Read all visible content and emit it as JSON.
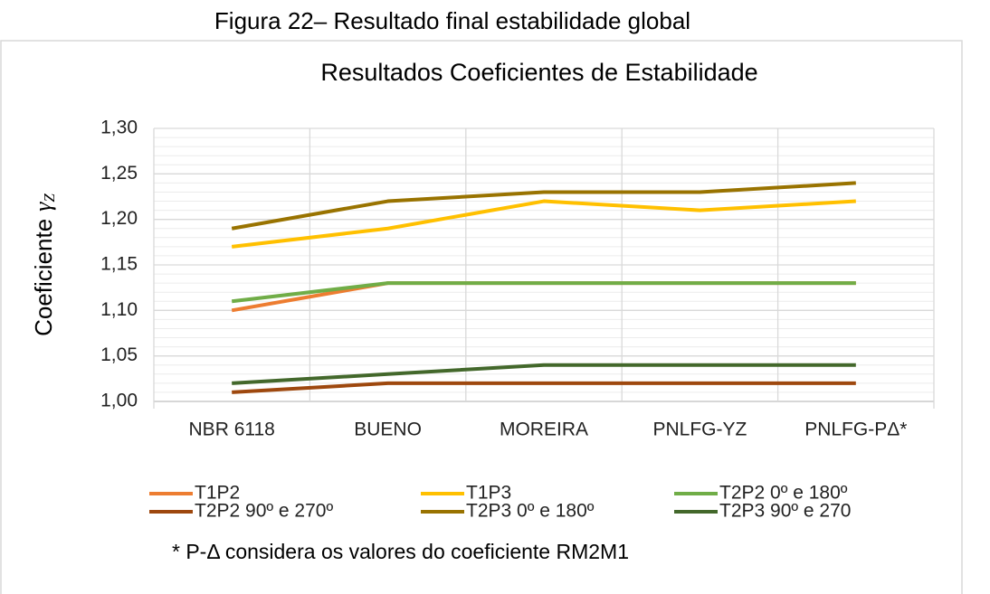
{
  "caption": "Figura 22– Resultado final estabilidade global",
  "chart_data": {
    "type": "line",
    "title": "Resultados Coeficientes de Estabilidade",
    "y_label": "Coeficiente",
    "y_label_symbol": "γ",
    "y_label_subscript": "Z",
    "categories": [
      "NBR 6118",
      "BUENO",
      "MOREIRA",
      "PNLFG-YZ",
      "PNLFG-PΔ*"
    ],
    "series": [
      {
        "name": "T1P2",
        "color": "#ED7D31",
        "values": [
          1.1,
          1.13,
          1.13,
          1.13,
          1.13
        ]
      },
      {
        "name": "T1P3",
        "color": "#FFC000",
        "values": [
          1.17,
          1.19,
          1.22,
          1.21,
          1.22
        ]
      },
      {
        "name": "T2P2 0º e 180º",
        "color": "#70AD47",
        "values": [
          1.11,
          1.13,
          1.13,
          1.13,
          1.13
        ]
      },
      {
        "name": "T2P2 90º e 270º",
        "color": "#9E480E",
        "values": [
          1.01,
          1.02,
          1.02,
          1.02,
          1.02
        ]
      },
      {
        "name": "T2P3 0º e 180º",
        "color": "#997300",
        "values": [
          1.19,
          1.22,
          1.23,
          1.23,
          1.24
        ]
      },
      {
        "name": "T2P3 90º e 270",
        "color": "#43682B",
        "values": [
          1.02,
          1.03,
          1.04,
          1.04,
          1.04
        ]
      }
    ],
    "ylim": [
      1.0,
      1.3
    ],
    "yticks": [
      {
        "value": 1.0,
        "label": "1,00"
      },
      {
        "value": 1.05,
        "label": "1,05"
      },
      {
        "value": 1.1,
        "label": "1,10"
      },
      {
        "value": 1.15,
        "label": "1,15"
      },
      {
        "value": 1.2,
        "label": "1,20"
      },
      {
        "value": 1.25,
        "label": "1,25"
      },
      {
        "value": 1.3,
        "label": "1,30"
      }
    ],
    "grid": true,
    "minor_grid": true,
    "legend": "bottom",
    "footnote": "* P-Δ considera os valores do coeficiente RM2M1"
  }
}
